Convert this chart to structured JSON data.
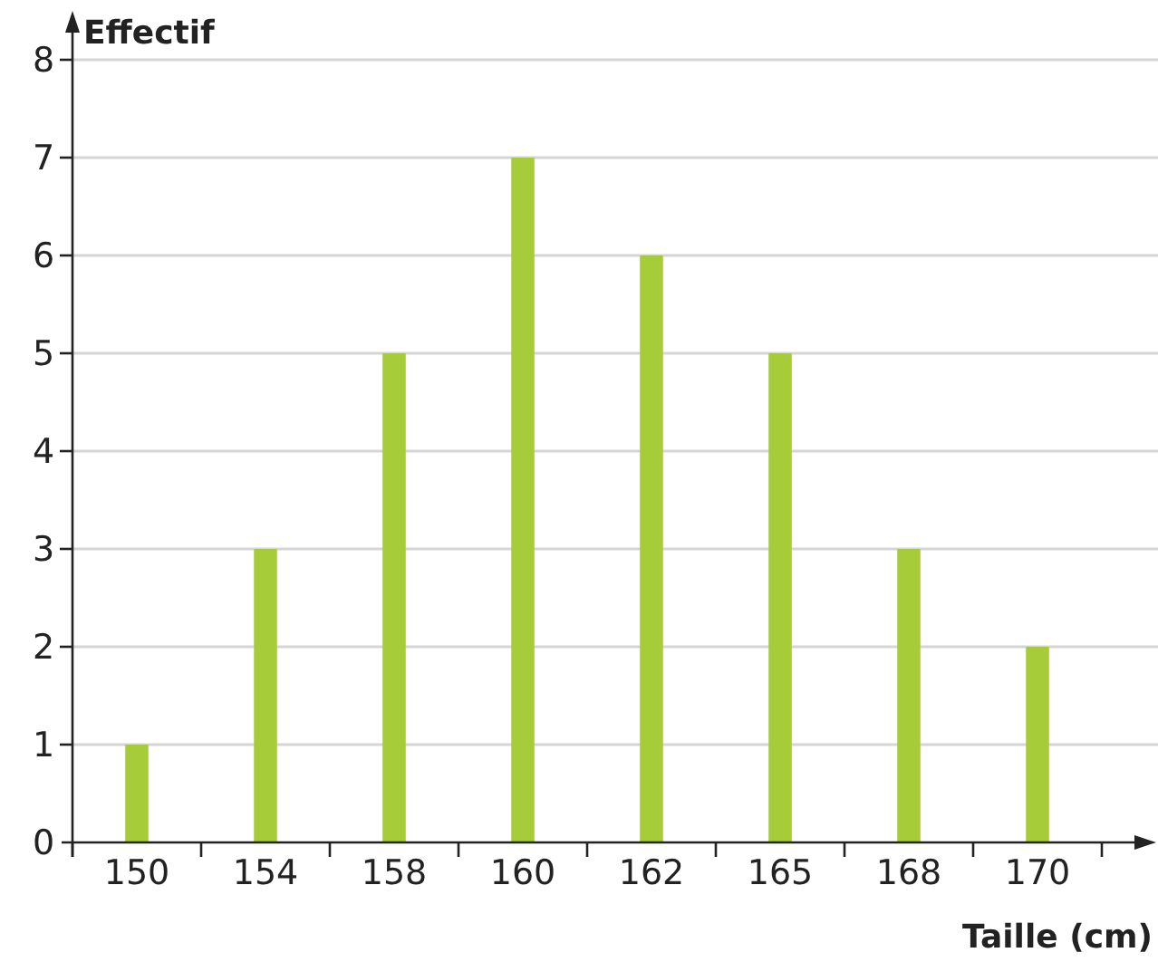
{
  "chart_data": {
    "type": "bar",
    "xlabel": "Taille (cm)",
    "ylabel": "Effectif",
    "categories": [
      "150",
      "154",
      "158",
      "160",
      "162",
      "165",
      "168",
      "170"
    ],
    "values": [
      1,
      3,
      5,
      7,
      6,
      5,
      3,
      2
    ],
    "color": "#a6cd39",
    "ylim": [
      0,
      8
    ],
    "yticks": [
      0,
      1,
      2,
      3,
      4,
      5,
      6,
      7,
      8
    ],
    "grid": "y"
  }
}
